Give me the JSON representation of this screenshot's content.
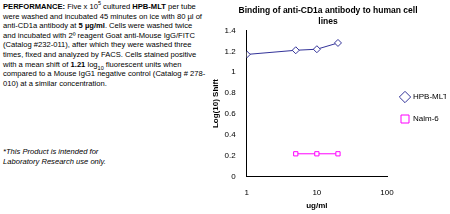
{
  "document": {
    "paragraph": [
      {
        "text": "PERFORMANCE:",
        "bold": true
      },
      {
        "text": " Five x 10"
      },
      {
        "text": "5",
        "sup": true
      },
      {
        "text": " cultured "
      },
      {
        "text": "HPB-MLT",
        "bold": true
      },
      {
        "text": " per tube were washed and incubated 45 minutes on ice with 80 µl of anti-CD1a antibody at "
      },
      {
        "text": "5 µg/ml",
        "bold": true
      },
      {
        "text": ". Cells were washed twice and incubated with 2º reagent Goat anti-Mouse IgG/FITC (Catalog #232-011), after which they were washed three times, fixed and analyzed by FACS. Cells stained positive with a mean shift of "
      },
      {
        "text": "1.21",
        "bold": true
      },
      {
        "text": " log"
      },
      {
        "text": "10",
        "sub": true
      },
      {
        "text": " fluorescent units when compared to a Mouse IgG1 negative control (Catalog # 278-010) at a similar concentration."
      }
    ],
    "note": "*This Product is intended for Laboratory Research use only."
  },
  "chart_data": {
    "type": "line",
    "title": "Binding of anti-CD1a antibody to human cell lines",
    "xlabel": "ug/ml",
    "ylabel": "Log(10) Shift",
    "log": "x",
    "xlim": [
      1,
      100
    ],
    "xticks": [
      1,
      10,
      100
    ],
    "ylim": [
      0,
      1.4
    ],
    "yticks": [
      0,
      0.2,
      0.4,
      0.6,
      0.8,
      1,
      1.2,
      1.4
    ],
    "grid": false,
    "legend": "right",
    "series": [
      {
        "name": "HPB-MLT",
        "color": "#333399",
        "marker": "diamond",
        "x": [
          1,
          5,
          10,
          20
        ],
        "values": [
          1.17,
          1.21,
          1.22,
          1.28
        ]
      },
      {
        "name": "Nalm-6",
        "color": "#ff00ff",
        "marker": "square",
        "x": [
          5,
          10,
          20
        ],
        "values": [
          0.22,
          0.22,
          0.22
        ]
      }
    ]
  }
}
